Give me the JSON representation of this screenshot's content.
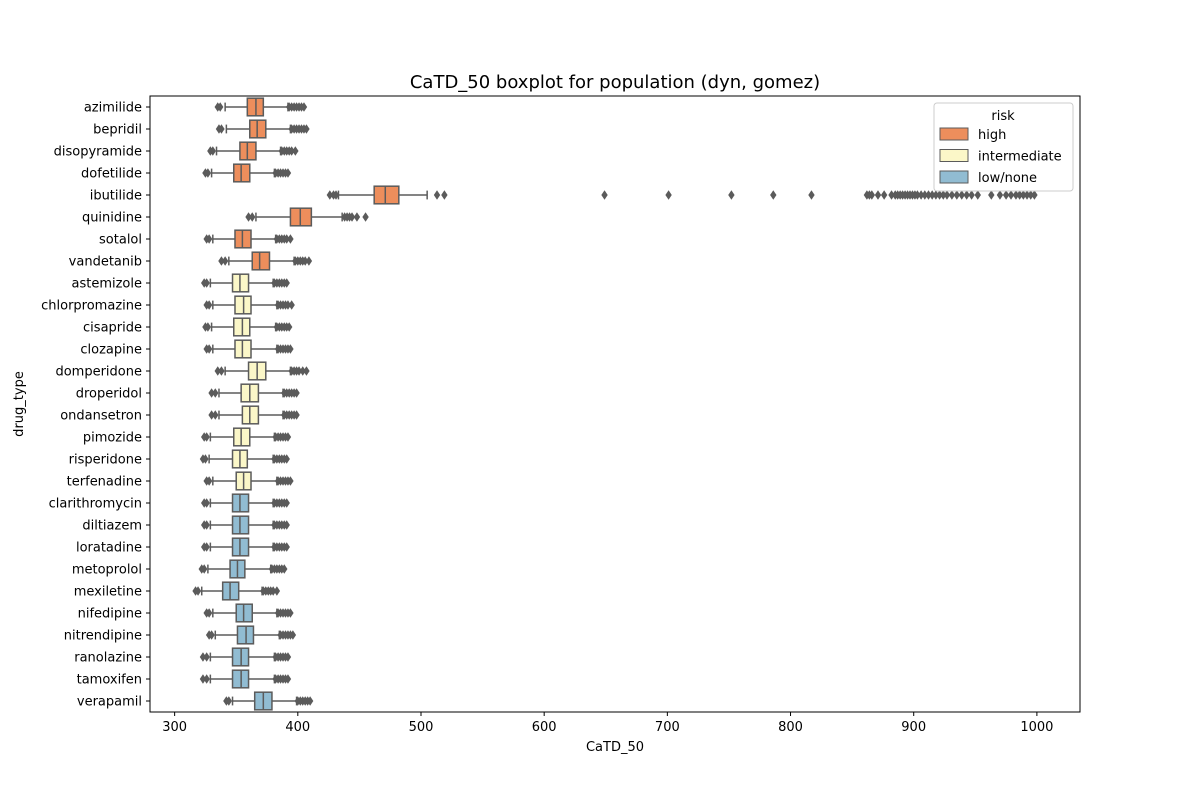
{
  "chart_data": {
    "type": "boxplot",
    "orientation": "horizontal",
    "title": "CaTD_50 boxplot for population (dyn, gomez)",
    "xlabel": "CaTD_50",
    "ylabel": "drug_type",
    "xlim": [
      280,
      1035
    ],
    "xticks": [
      300,
      400,
      500,
      600,
      700,
      800,
      900,
      1000
    ],
    "grid": false,
    "legend": {
      "title": "risk",
      "position": "top-right",
      "entries": [
        {
          "label": "high",
          "color": "#ed8e5c"
        },
        {
          "label": "intermediate",
          "color": "#fbf7c8"
        },
        {
          "label": "low/none",
          "color": "#91bcd2"
        }
      ]
    },
    "colors": {
      "high": "#ed8e5c",
      "intermediate": "#fbf7c8",
      "low/none": "#91bcd2",
      "line": "#5b5b5b"
    },
    "drugs": [
      {
        "name": "azimilide",
        "risk": "high",
        "whislo": 341,
        "q1": 359,
        "med": 366,
        "q3": 372,
        "whishi": 392,
        "fliers": [
          335,
          337,
          393,
          395,
          397,
          399,
          401,
          403,
          405
        ]
      },
      {
        "name": "bepridil",
        "risk": "high",
        "whislo": 342,
        "q1": 361,
        "med": 367,
        "q3": 374,
        "whishi": 394,
        "fliers": [
          336,
          338,
          395,
          397,
          399,
          401,
          403,
          405,
          407
        ]
      },
      {
        "name": "disopyramide",
        "risk": "high",
        "whislo": 334,
        "q1": 353,
        "med": 359,
        "q3": 366,
        "whishi": 386,
        "fliers": [
          329,
          331,
          387,
          389,
          391,
          393,
          395,
          398
        ]
      },
      {
        "name": "dofetilide",
        "risk": "high",
        "whislo": 330,
        "q1": 348,
        "med": 354,
        "q3": 361,
        "whishi": 381,
        "fliers": [
          325,
          327,
          382,
          384,
          386,
          388,
          390,
          392
        ]
      },
      {
        "name": "ibutilide",
        "risk": "high",
        "whislo": 433,
        "q1": 462,
        "med": 471,
        "q3": 482,
        "whishi": 505,
        "fliers": [
          426,
          429,
          431,
          513,
          519,
          649,
          701,
          752,
          786,
          817,
          862,
          864,
          866,
          871,
          876,
          882,
          885,
          887,
          889,
          891,
          893,
          895,
          897,
          899,
          901,
          903,
          906,
          909,
          912,
          915,
          918,
          921,
          924,
          927,
          931,
          935,
          939,
          943,
          947,
          952,
          963,
          970,
          975,
          979,
          983,
          986,
          989,
          992,
          995,
          998
        ]
      },
      {
        "name": "quinidine",
        "risk": "high",
        "whislo": 366,
        "q1": 394,
        "med": 402,
        "q3": 411,
        "whishi": 436,
        "fliers": [
          360,
          363,
          438,
          440,
          442,
          444,
          448,
          455
        ]
      },
      {
        "name": "sotalol",
        "risk": "high",
        "whislo": 331,
        "q1": 349,
        "med": 355,
        "q3": 362,
        "whishi": 382,
        "fliers": [
          326,
          328,
          383,
          385,
          387,
          389,
          391,
          394
        ]
      },
      {
        "name": "vandetanib",
        "risk": "high",
        "whislo": 344,
        "q1": 363,
        "med": 369,
        "q3": 377,
        "whishi": 397,
        "fliers": [
          338,
          341,
          398,
          400,
          402,
          404,
          406,
          409
        ]
      },
      {
        "name": "astemizole",
        "risk": "intermediate",
        "whislo": 329,
        "q1": 347,
        "med": 353,
        "q3": 360,
        "whishi": 380,
        "fliers": [
          324,
          326,
          381,
          383,
          385,
          387,
          389,
          391
        ]
      },
      {
        "name": "chlorpromazine",
        "risk": "intermediate",
        "whislo": 331,
        "q1": 349,
        "med": 356,
        "q3": 362,
        "whishi": 383,
        "fliers": [
          326,
          328,
          384,
          386,
          388,
          390,
          392,
          395
        ]
      },
      {
        "name": "cisapride",
        "risk": "intermediate",
        "whislo": 330,
        "q1": 348,
        "med": 355,
        "q3": 361,
        "whishi": 382,
        "fliers": [
          325,
          327,
          383,
          385,
          387,
          389,
          391,
          393
        ]
      },
      {
        "name": "clozapine",
        "risk": "intermediate",
        "whislo": 331,
        "q1": 349,
        "med": 355,
        "q3": 362,
        "whishi": 383,
        "fliers": [
          326,
          328,
          384,
          386,
          388,
          390,
          392,
          394
        ]
      },
      {
        "name": "domperidone",
        "risk": "intermediate",
        "whislo": 341,
        "q1": 360,
        "med": 367,
        "q3": 374,
        "whishi": 394,
        "fliers": [
          335,
          338,
          395,
          397,
          399,
          401,
          404,
          407
        ]
      },
      {
        "name": "droperidol",
        "risk": "intermediate",
        "whislo": 336,
        "q1": 354,
        "med": 361,
        "q3": 368,
        "whishi": 388,
        "fliers": [
          330,
          333,
          389,
          391,
          393,
          395,
          397,
          399
        ]
      },
      {
        "name": "ondansetron",
        "risk": "intermediate",
        "whislo": 336,
        "q1": 355,
        "med": 361,
        "q3": 368,
        "whishi": 388,
        "fliers": [
          330,
          333,
          389,
          391,
          393,
          395,
          397,
          399
        ]
      },
      {
        "name": "pimozide",
        "risk": "intermediate",
        "whislo": 329,
        "q1": 348,
        "med": 354,
        "q3": 361,
        "whishi": 381,
        "fliers": [
          324,
          326,
          382,
          384,
          386,
          388,
          390,
          392
        ]
      },
      {
        "name": "risperidone",
        "risk": "intermediate",
        "whislo": 328,
        "q1": 347,
        "med": 353,
        "q3": 359,
        "whishi": 380,
        "fliers": [
          323,
          325,
          381,
          383,
          385,
          387,
          389,
          391
        ]
      },
      {
        "name": "terfenadine",
        "risk": "intermediate",
        "whislo": 331,
        "q1": 350,
        "med": 356,
        "q3": 362,
        "whishi": 383,
        "fliers": [
          326,
          328,
          384,
          386,
          388,
          390,
          392,
          394
        ]
      },
      {
        "name": "clarithromycin",
        "risk": "low/none",
        "whislo": 329,
        "q1": 347,
        "med": 353,
        "q3": 360,
        "whishi": 380,
        "fliers": [
          324,
          326,
          381,
          383,
          385,
          387,
          389,
          391
        ]
      },
      {
        "name": "diltiazem",
        "risk": "low/none",
        "whislo": 329,
        "q1": 347,
        "med": 353,
        "q3": 360,
        "whishi": 380,
        "fliers": [
          324,
          326,
          381,
          383,
          385,
          387,
          389,
          391
        ]
      },
      {
        "name": "loratadine",
        "risk": "low/none",
        "whislo": 329,
        "q1": 347,
        "med": 353,
        "q3": 360,
        "whishi": 380,
        "fliers": [
          324,
          326,
          381,
          383,
          385,
          387,
          389,
          391
        ]
      },
      {
        "name": "metoprolol",
        "risk": "low/none",
        "whislo": 327,
        "q1": 345,
        "med": 351,
        "q3": 357,
        "whishi": 378,
        "fliers": [
          322,
          324,
          379,
          381,
          383,
          385,
          387,
          389
        ]
      },
      {
        "name": "mexiletine",
        "risk": "low/none",
        "whislo": 322,
        "q1": 339,
        "med": 345,
        "q3": 352,
        "whishi": 371,
        "fliers": [
          317,
          319,
          372,
          374,
          376,
          378,
          380,
          383
        ]
      },
      {
        "name": "nifedipine",
        "risk": "low/none",
        "whislo": 331,
        "q1": 350,
        "med": 356,
        "q3": 363,
        "whishi": 383,
        "fliers": [
          326,
          328,
          384,
          386,
          388,
          390,
          392,
          394
        ]
      },
      {
        "name": "nitrendipine",
        "risk": "low/none",
        "whislo": 333,
        "q1": 351,
        "med": 358,
        "q3": 364,
        "whishi": 385,
        "fliers": [
          328,
          330,
          386,
          388,
          390,
          392,
          394,
          396
        ]
      },
      {
        "name": "ranolazine",
        "risk": "low/none",
        "whislo": 329,
        "q1": 347,
        "med": 354,
        "q3": 360,
        "whishi": 381,
        "fliers": [
          323,
          326,
          382,
          384,
          386,
          388,
          390,
          392
        ]
      },
      {
        "name": "tamoxifen",
        "risk": "low/none",
        "whislo": 329,
        "q1": 347,
        "med": 354,
        "q3": 360,
        "whishi": 381,
        "fliers": [
          323,
          326,
          382,
          384,
          386,
          388,
          390,
          392
        ]
      },
      {
        "name": "verapamil",
        "risk": "low/none",
        "whislo": 347,
        "q1": 365,
        "med": 372,
        "q3": 379,
        "whishi": 399,
        "fliers": [
          342,
          344,
          400,
          402,
          404,
          406,
          408,
          410
        ]
      }
    ]
  }
}
